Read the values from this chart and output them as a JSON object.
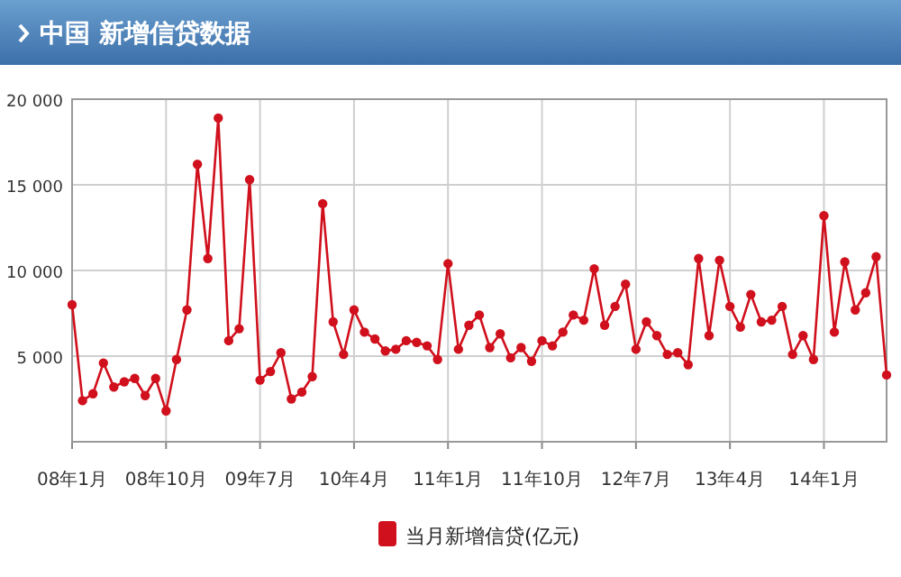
{
  "chart_data": {
    "type": "line",
    "title": "中国 新增信贷数据",
    "x": [
      "2008-01",
      "2008-02",
      "2008-03",
      "2008-04",
      "2008-05",
      "2008-06",
      "2008-07",
      "2008-08",
      "2008-09",
      "2008-10",
      "2008-11",
      "2008-12",
      "2009-01",
      "2009-02",
      "2009-03",
      "2009-04",
      "2009-05",
      "2009-06",
      "2009-07",
      "2009-08",
      "2009-09",
      "2009-10",
      "2009-11",
      "2009-12",
      "2010-01",
      "2010-02",
      "2010-03",
      "2010-04",
      "2010-05",
      "2010-06",
      "2010-07",
      "2010-08",
      "2010-09",
      "2010-10",
      "2010-11",
      "2010-12",
      "2011-01",
      "2011-02",
      "2011-03",
      "2011-04",
      "2011-05",
      "2011-06",
      "2011-07",
      "2011-08",
      "2011-09",
      "2011-10",
      "2011-11",
      "2011-12",
      "2012-01",
      "2012-02",
      "2012-03",
      "2012-04",
      "2012-05",
      "2012-06",
      "2012-07",
      "2012-08",
      "2012-09",
      "2012-10",
      "2012-11",
      "2012-12",
      "2013-01",
      "2013-02",
      "2013-03",
      "2013-04",
      "2013-05",
      "2013-06",
      "2013-07",
      "2013-08",
      "2013-09",
      "2013-10",
      "2013-11",
      "2013-12",
      "2014-01",
      "2014-02",
      "2014-03",
      "2014-04",
      "2014-05",
      "2014-06",
      "2014-07"
    ],
    "series": [
      {
        "name": "当月新增信贷(亿元)",
        "color": "#d0101c",
        "values": [
          8000,
          2400,
          2800,
          4600,
          3200,
          3500,
          3700,
          2700,
          3700,
          1800,
          4800,
          7700,
          16200,
          10700,
          18900,
          5900,
          6600,
          15300,
          3600,
          4100,
          5200,
          2500,
          2900,
          3800,
          13900,
          7000,
          5100,
          7700,
          6400,
          6000,
          5300,
          5400,
          5900,
          5800,
          5600,
          4800,
          10400,
          5400,
          6800,
          7400,
          5500,
          6300,
          4900,
          5500,
          4700,
          5900,
          5600,
          6400,
          7400,
          7100,
          10100,
          6800,
          7900,
          9200,
          5400,
          7000,
          6200,
          5100,
          5200,
          4500,
          10700,
          6200,
          10600,
          7900,
          6700,
          8600,
          7000,
          7100,
          7900,
          5100,
          6200,
          4800,
          13200,
          6400,
          10500,
          7700,
          8700,
          10800,
          3900
        ]
      }
    ],
    "xlim": [
      "2008-01",
      "2014-07"
    ],
    "xticks": [
      {
        "value": "2008-01",
        "label": "08年1月"
      },
      {
        "value": "2008-10",
        "label": "08年10月"
      },
      {
        "value": "2009-07",
        "label": "09年7月"
      },
      {
        "value": "2010-04",
        "label": "10年4月"
      },
      {
        "value": "2011-01",
        "label": "11年1月"
      },
      {
        "value": "2011-10",
        "label": "11年10月"
      },
      {
        "value": "2012-07",
        "label": "12年7月"
      },
      {
        "value": "2013-04",
        "label": "13年4月"
      },
      {
        "value": "2014-01",
        "label": "14年1月"
      }
    ],
    "ylim": [
      0,
      20000
    ],
    "yticks": [
      {
        "value": 5000,
        "label": "5 000"
      },
      {
        "value": 10000,
        "label": "10 000"
      },
      {
        "value": 15000,
        "label": "15 000"
      },
      {
        "value": 20000,
        "label": "20 000"
      }
    ],
    "grid": true,
    "legend": "bottom",
    "marker": "circle",
    "line_style": "solid"
  }
}
